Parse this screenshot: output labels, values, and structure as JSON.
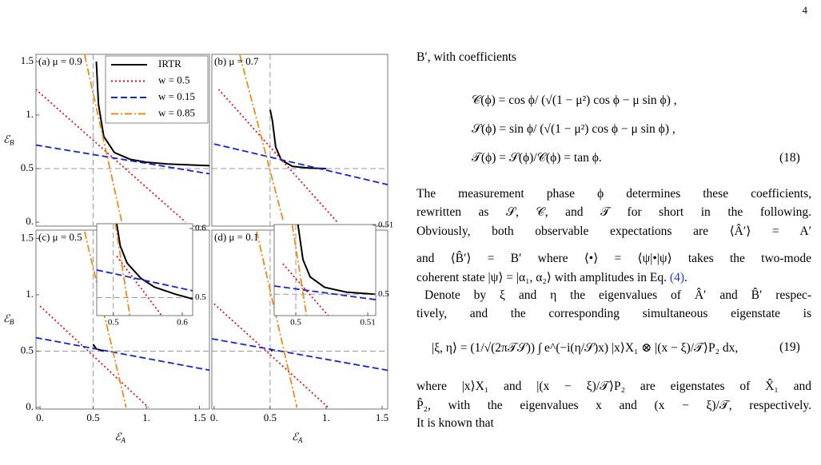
{
  "page_number": "4",
  "chart_data": [
    {
      "type": "line",
      "label": "(a) μ = 0.9",
      "legend": "upper right",
      "xlim": [
        -0.038,
        1.594
      ],
      "ylim": [
        -0.037,
        1.567
      ],
      "yticks": [
        {
          "value": 0,
          "label": "0."
        },
        {
          "value": 0.5,
          "label": "0.5"
        },
        {
          "value": 1,
          "label": "1."
        },
        {
          "value": 1.5,
          "label": "1.5"
        }
      ],
      "ylabel": {
        "symbol": "ℰ",
        "subscript": "B"
      },
      "vlines": [
        0.5
      ],
      "hlines": [
        0.5
      ],
      "series": [
        {
          "name": "IRTR",
          "color": "#000000",
          "style": "solid",
          "x": [
            0.53,
            0.55,
            0.6,
            0.7,
            0.85,
            1.0,
            1.2,
            1.6
          ],
          "values": [
            1.5,
            1.1,
            0.8,
            0.65,
            0.586,
            0.56,
            0.543,
            0.527
          ]
        },
        {
          "name": "w = 0.5",
          "color": "#e8101a",
          "style": "dotted",
          "x": [
            -0.04,
            1.37
          ],
          "values": [
            1.24,
            0
          ]
        },
        {
          "name": "w = 0.15",
          "color": "#1524d8",
          "style": "dashed",
          "x": [
            -0.04,
            1.6
          ],
          "values": [
            0.72,
            0.45
          ]
        },
        {
          "name": "w = 0.85",
          "color": "#f08a12",
          "style": "dashdot",
          "x": [
            0.42,
            0.77
          ],
          "values": [
            1.56,
            0
          ]
        }
      ]
    },
    {
      "type": "line",
      "label": "(b) μ = 0.7",
      "xlim": [
        -0.02,
        1.55
      ],
      "ylim": [
        -0.037,
        1.567
      ],
      "vlines": [
        0.5
      ],
      "hlines": [
        0.5
      ],
      "series": [
        {
          "color": "#000000",
          "style": "solid",
          "x": [
            0.5,
            0.52,
            0.55,
            0.6,
            0.7,
            0.85,
            1.0
          ],
          "values": [
            1.05,
            0.95,
            0.7,
            0.58,
            0.52,
            0.505,
            0.5
          ]
        },
        {
          "color": "#e8101a",
          "style": "dotted",
          "x": [
            0.04,
            1.1
          ],
          "values": [
            1.24,
            0
          ]
        },
        {
          "color": "#1524d8",
          "style": "dashed",
          "x": [
            0,
            1.55
          ],
          "values": [
            0.73,
            0.35
          ]
        },
        {
          "color": "#f08a12",
          "style": "dashdot",
          "x": [
            0.23,
            0.62
          ],
          "values": [
            1.56,
            0
          ]
        }
      ]
    },
    {
      "type": "line",
      "label": "(c) μ = 0.5",
      "xlim": [
        -0.038,
        1.594
      ],
      "ylim": [
        -0.014,
        1.574
      ],
      "xticks": [
        {
          "value": 0,
          "label": "0."
        },
        {
          "value": 0.5,
          "label": "0.5"
        },
        {
          "value": 1,
          "label": "1."
        },
        {
          "value": 1.5,
          "label": "1.5"
        }
      ],
      "yticks": [
        {
          "value": 0,
          "label": "0."
        },
        {
          "value": 0.5,
          "label": "0.5"
        },
        {
          "value": 1,
          "label": "1."
        },
        {
          "value": 1.5,
          "label": "1.5"
        }
      ],
      "xlabel": {
        "symbol": "ℰ",
        "subscript": "A"
      },
      "ylabel": {
        "symbol": "ℰ",
        "subscript": "B"
      },
      "vlines": [
        0.5
      ],
      "hlines": [
        0.5
      ],
      "series": [
        {
          "color": "#000000",
          "style": "solid",
          "x": [
            0.5,
            0.53,
            0.6
          ],
          "values": [
            0.56,
            0.52,
            0.5
          ]
        },
        {
          "color": "#e8101a",
          "style": "dotted",
          "x": [
            0,
            1.02
          ],
          "values": [
            0.9,
            0
          ]
        },
        {
          "color": "#1524d8",
          "style": "dashed",
          "x": [
            -0.04,
            1.6
          ],
          "values": [
            0.62,
            0.33
          ]
        },
        {
          "color": "#f08a12",
          "style": "dashdot",
          "x": [
            0.42,
            0.81
          ],
          "values": [
            1.56,
            0
          ]
        }
      ],
      "inset": {
        "xlim": [
          0.476,
          0.615
        ],
        "ylim": [
          0.474,
          0.607
        ],
        "xticks": [
          0.5,
          0.6
        ],
        "yticks": [
          0.5,
          0.6
        ],
        "vlines": [
          0.5
        ],
        "hlines": [
          0.5
        ],
        "series": [
          {
            "color": "#000000",
            "style": "solid",
            "x": [
              0.505,
              0.51,
              0.52,
              0.54,
              0.56,
              0.59,
              0.615
            ],
            "values": [
              0.607,
              0.575,
              0.55,
              0.528,
              0.515,
              0.505,
              0.498
            ]
          },
          {
            "color": "#e8101a",
            "style": "dotted",
            "x": [
              0.505,
              0.57
            ],
            "values": [
              0.56,
              0.474
            ]
          },
          {
            "color": "#1524d8",
            "style": "dashed",
            "x": [
              0.476,
              0.615
            ],
            "values": [
              0.54,
              0.51
            ]
          },
          {
            "color": "#f08a12",
            "style": "dashdot",
            "x": [
              0.503,
              0.524
            ],
            "values": [
              0.607,
              0.474
            ]
          }
        ]
      }
    },
    {
      "type": "line",
      "label": "(d) μ = 0.1",
      "xlim": [
        -0.02,
        1.55
      ],
      "ylim": [
        -0.014,
        1.574
      ],
      "xticks": [
        {
          "value": 0,
          "label": "0."
        },
        {
          "value": 0.5,
          "label": "0.5"
        },
        {
          "value": 1,
          "label": "1."
        },
        {
          "value": 1.5,
          "label": "1.5"
        }
      ],
      "xlabel": {
        "symbol": "ℰ",
        "subscript": "A"
      },
      "vlines": [
        0.5
      ],
      "hlines": [
        0.5
      ],
      "series": [
        {
          "color": "#000000",
          "style": "solid",
          "x": [
            0.5,
            0.52
          ],
          "values": [
            0.52,
            0.5
          ]
        },
        {
          "color": "#e8101a",
          "style": "dotted",
          "x": [
            0,
            1.02
          ],
          "values": [
            0.92,
            0
          ]
        },
        {
          "color": "#1524d8",
          "style": "dashed",
          "x": [
            -0.02,
            1.55
          ],
          "values": [
            0.61,
            0.33
          ]
        },
        {
          "color": "#f08a12",
          "style": "dashdot",
          "x": [
            0.38,
            0.74
          ],
          "values": [
            1.56,
            0
          ]
        }
      ],
      "inset": {
        "xlim": [
          0.497,
          0.5111
        ],
        "ylim": [
          0.4969,
          0.5101
        ],
        "xticks": [
          0.5,
          0.51
        ],
        "yticks": [
          0.5,
          0.51
        ],
        "vlines": [
          0.5
        ],
        "hlines": [
          0.5
        ],
        "series": [
          {
            "color": "#000000",
            "style": "solid",
            "x": [
              0.5003,
              0.501,
              0.502,
              0.504,
              0.507,
              0.511
            ],
            "values": [
              0.5101,
              0.505,
              0.5025,
              0.501,
              0.5003,
              0.5
            ]
          },
          {
            "color": "#e8101a",
            "style": "dotted",
            "x": [
              0.4982,
              0.5045
            ],
            "values": [
              0.5044,
              0.4969
            ]
          },
          {
            "color": "#1524d8",
            "style": "dashed",
            "x": [
              0.497,
              0.5111
            ],
            "values": [
              0.5012,
              0.4992
            ]
          },
          {
            "color": "#f08a12",
            "style": "dashdot",
            "x": [
              0.4995,
              0.5015
            ],
            "values": [
              0.5101,
              0.4969
            ]
          }
        ]
      }
    }
  ],
  "text": {
    "lead": "B′, with coefficients",
    "eq18": [
      "𝒞(ϕ) = cos ϕ/ (√(1 − μ²) cos ϕ − μ sin ϕ) ,",
      "𝒮(ϕ) = sin ϕ/ (√(1 − μ²) cos ϕ − μ sin ϕ) ,",
      "𝒯(ϕ) = 𝒮(ϕ)/𝒞(ϕ) = tan ϕ."
    ],
    "eq18_number": "(18)",
    "para1": [
      "The measurement phase ϕ determines these coefficients,",
      "rewritten as 𝒮, 𝒞, and 𝒯 for short in the following.",
      "Obviously, both observable expectations are ⟨Â′⟩ = A′",
      "and ⟨B̂′⟩ = B′ where ⟨•⟩ = ⟨ψ|•|ψ⟩ takes the two-mode"
    ],
    "para1_last": "coherent state |ψ⟩ = |α₁, α₂⟩ with amplitudes in Eq. ",
    "para1_ref": "(4)",
    "para1_end": ".",
    "para2": [
      "Denote by ξ and η the eigenvalues of Â′ and B̂′ respec-",
      "tively, and the corresponding simultaneous eigenstate is"
    ],
    "eq19": "|ξ, η⟩ = (1/√(2π𝒯𝒮)) ∫ e^(−i(η/𝒮)x) |x⟩X₁ ⊗ |(x − ξ)/𝒯⟩P₂ dx,",
    "eq19_number": "(19)",
    "para3": [
      "where |x⟩X₁ and |(x − ξ)/𝒯⟩P₂ are eigenstates of X̂₁ and",
      "P̂₂, with the eigenvalues x and (x − ξ)/𝒯, respectively."
    ],
    "para3_last": "It is known that"
  }
}
